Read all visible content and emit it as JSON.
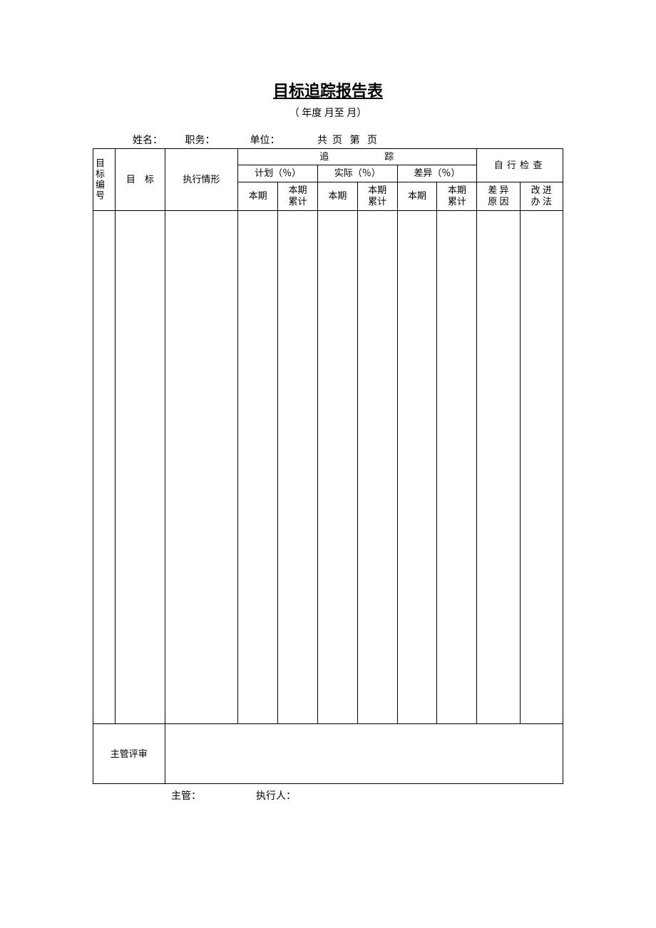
{
  "title": "目标追踪报告表",
  "subtitle": "（     年度    月至     月）",
  "info": {
    "name_label": "姓名：",
    "position_label": "职务：",
    "unit_label": "单位：",
    "page_label": "共  页   第   页"
  },
  "headers": {
    "id": "目标编号",
    "target": "目　标",
    "execution": "执行情形",
    "tracking": "追踪",
    "plan": "计划（％）",
    "actual": "实际（％）",
    "variance": "差异（％）",
    "self_check": "自行检查",
    "current": "本期",
    "cumulative_line1": "本期",
    "cumulative_line2": "累计",
    "reason_line1": "差 异",
    "reason_line2": "原 因",
    "improve_line1": "改 进",
    "improve_line2": "办 法",
    "review": "主管评审"
  },
  "footer": {
    "supervisor": "主管：",
    "executor": "执行人："
  },
  "style": {
    "border_color": "#000000",
    "background_color": "#ffffff",
    "title_fontsize": 22,
    "body_fontsize": 13,
    "columns": {
      "id_width": 28,
      "target_width": 62,
      "exec_width": 92,
      "period_width": 50,
      "cum_width": 50,
      "reason_width": 54,
      "improve_width": 54
    },
    "body_row_height": 720,
    "review_row_height": 84
  }
}
